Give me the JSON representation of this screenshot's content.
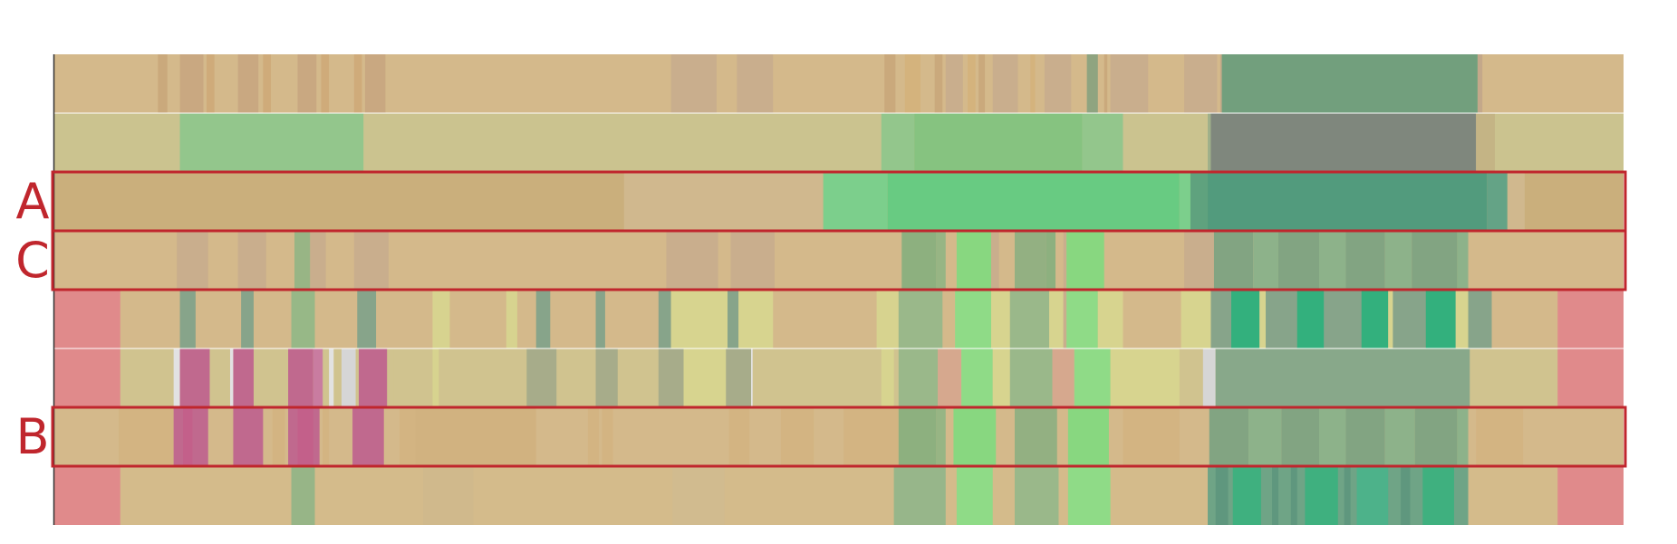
{
  "highlight_color": "#c0262d",
  "background_color": "#ffffff",
  "frame_color": "#333333",
  "row_labels": {
    "a": "A",
    "b": "B",
    "c": "C"
  },
  "highlighted_rows": [
    {
      "label_key": "a",
      "track_index": 2
    },
    {
      "label_key": "c",
      "track_index": 3
    },
    {
      "label_key": "b",
      "track_index": 6
    }
  ],
  "track_count": 8,
  "tracks": [
    {
      "name": "track-1",
      "base": "#d4b98b",
      "segments": [
        [
          0.066,
          0.072,
          "#caa97c"
        ],
        [
          0.08,
          0.095,
          "#c9a881"
        ],
        [
          0.097,
          0.102,
          "#cfab7a"
        ],
        [
          0.117,
          0.13,
          "#c9a881"
        ],
        [
          0.133,
          0.138,
          "#cfab7a"
        ],
        [
          0.155,
          0.167,
          "#c9a881"
        ],
        [
          0.17,
          0.175,
          "#cfab7a"
        ],
        [
          0.191,
          0.196,
          "#cfab7a"
        ],
        [
          0.198,
          0.211,
          "#c9a881"
        ],
        [
          0.393,
          0.422,
          "#c9ae8d"
        ],
        [
          0.435,
          0.458,
          "#c9ae8d"
        ],
        [
          0.529,
          0.536,
          "#caa97c"
        ],
        [
          0.542,
          0.552,
          "#d4b37d"
        ],
        [
          0.561,
          0.566,
          "#caa97c"
        ],
        [
          0.568,
          0.579,
          "#c9ae8d"
        ],
        [
          0.582,
          0.587,
          "#d4b37d"
        ],
        [
          0.589,
          0.593,
          "#caa97c"
        ],
        [
          0.598,
          0.614,
          "#c9ae8d"
        ],
        [
          0.622,
          0.625,
          "#d4b37d"
        ],
        [
          0.631,
          0.648,
          "#c9ae8d"
        ],
        [
          0.658,
          0.665,
          "#8fa480"
        ],
        [
          0.669,
          0.671,
          "#caa97c"
        ],
        [
          0.673,
          0.697,
          "#c9ae8d"
        ],
        [
          0.72,
          0.741,
          "#c9ae8d"
        ],
        [
          0.743,
          0.744,
          "#c4a88a"
        ],
        [
          0.744,
          0.907,
          "#729f7d"
        ],
        [
          0.907,
          0.91,
          "#c4a88a"
        ]
      ]
    },
    {
      "name": "track-2",
      "base": "#cbc38f",
      "segments": [
        [
          0.08,
          0.197,
          "#93c68c"
        ],
        [
          0.527,
          0.548,
          "#93c68c"
        ],
        [
          0.548,
          0.655,
          "#86c380"
        ],
        [
          0.655,
          0.681,
          "#93c68c"
        ],
        [
          0.735,
          0.737,
          "#9fb08a"
        ],
        [
          0.737,
          0.906,
          "#7f877d"
        ],
        [
          0.906,
          0.918,
          "#c4b485"
        ]
      ]
    },
    {
      "name": "track-3",
      "base": "#caaf7c",
      "segments": [
        [
          0.363,
          0.49,
          "#d0b88e"
        ],
        [
          0.49,
          0.531,
          "#7ccf8c"
        ],
        [
          0.531,
          0.717,
          "#68cb82"
        ],
        [
          0.717,
          0.724,
          "#7ccf8c"
        ],
        [
          0.724,
          0.735,
          "#5fa27e"
        ],
        [
          0.735,
          0.913,
          "#529b7d"
        ],
        [
          0.913,
          0.926,
          "#64a386"
        ],
        [
          0.926,
          0.937,
          "#d0b88e"
        ]
      ]
    },
    {
      "name": "track-4",
      "base": "#d4b98b",
      "segments": [
        [
          0.078,
          0.098,
          "#c9ae8d"
        ],
        [
          0.117,
          0.135,
          "#c9ae8d"
        ],
        [
          0.153,
          0.163,
          "#98b585"
        ],
        [
          0.163,
          0.173,
          "#c9ae8d"
        ],
        [
          0.191,
          0.213,
          "#c9ae8d"
        ],
        [
          0.39,
          0.423,
          "#c9ae8d"
        ],
        [
          0.431,
          0.459,
          "#c9ae8d"
        ],
        [
          0.54,
          0.562,
          "#8db07f"
        ],
        [
          0.562,
          0.568,
          "#97b584"
        ],
        [
          0.575,
          0.597,
          "#88d780"
        ],
        [
          0.597,
          0.602,
          "#c9ae8d"
        ],
        [
          0.612,
          0.61,
          "#c9ae8d"
        ],
        [
          0.612,
          0.632,
          "#93b082"
        ],
        [
          0.632,
          0.638,
          "#8db07f"
        ],
        [
          0.643,
          0.645,
          "#c9ae8d"
        ],
        [
          0.645,
          0.669,
          "#88d780"
        ],
        [
          0.72,
          0.739,
          "#c9ae8d"
        ],
        [
          0.739,
          0.764,
          "#82a482"
        ],
        [
          0.764,
          0.78,
          "#8db28a"
        ],
        [
          0.78,
          0.806,
          "#82a482"
        ],
        [
          0.806,
          0.823,
          "#8db28a"
        ],
        [
          0.823,
          0.848,
          "#82a482"
        ],
        [
          0.848,
          0.865,
          "#8db28a"
        ],
        [
          0.865,
          0.894,
          "#82a482"
        ],
        [
          0.894,
          0.901,
          "#8db28a"
        ]
      ]
    },
    {
      "name": "track-5",
      "base": "#d4b98b",
      "segments": [
        [
          0.0,
          0.042,
          "#e08a8b"
        ],
        [
          0.08,
          0.09,
          "#87a48a"
        ],
        [
          0.119,
          0.127,
          "#87a48a"
        ],
        [
          0.151,
          0.166,
          "#97b887"
        ],
        [
          0.193,
          0.205,
          "#87a48a"
        ],
        [
          0.241,
          0.252,
          "#d7d38f"
        ],
        [
          0.288,
          0.295,
          "#d7d38f"
        ],
        [
          0.307,
          0.316,
          "#87a48a"
        ],
        [
          0.345,
          0.351,
          "#87a48a"
        ],
        [
          0.385,
          0.393,
          "#87a48a"
        ],
        [
          0.393,
          0.429,
          "#d7d48f"
        ],
        [
          0.429,
          0.436,
          "#87a48a"
        ],
        [
          0.436,
          0.458,
          "#d7d48f"
        ],
        [
          0.524,
          0.538,
          "#d7d38f"
        ],
        [
          0.538,
          0.566,
          "#9ab88a"
        ],
        [
          0.574,
          0.597,
          "#8fdb87"
        ],
        [
          0.597,
          0.609,
          "#d7d48f"
        ],
        [
          0.609,
          0.634,
          "#9ab88a"
        ],
        [
          0.634,
          0.643,
          "#d7d48f"
        ],
        [
          0.643,
          0.645,
          "#c9ae8d"
        ],
        [
          0.645,
          0.665,
          "#8fdb87"
        ],
        [
          0.665,
          0.681,
          "#d7d48f"
        ],
        [
          0.718,
          0.737,
          "#d7d48f"
        ],
        [
          0.737,
          0.916,
          "#87a48a"
        ],
        [
          0.75,
          0.768,
          "#33b07d"
        ],
        [
          0.768,
          0.772,
          "#d7d48f"
        ],
        [
          0.772,
          0.788,
          "#87a48a"
        ],
        [
          0.792,
          0.809,
          "#33b07d"
        ],
        [
          0.833,
          0.85,
          "#33b07d"
        ],
        [
          0.85,
          0.853,
          "#d7d48f"
        ],
        [
          0.874,
          0.893,
          "#33b07d"
        ],
        [
          0.893,
          0.901,
          "#d7d48f"
        ],
        [
          0.958,
          1.0,
          "#e08a8b"
        ]
      ]
    },
    {
      "name": "track-6",
      "base": "#d0c38f",
      "segments": [
        [
          0.0,
          0.042,
          "#e08a8b"
        ],
        [
          0.076,
          0.08,
          "#e2e2e2"
        ],
        [
          0.08,
          0.099,
          "#c0698e"
        ],
        [
          0.112,
          0.114,
          "#e2e2e2"
        ],
        [
          0.114,
          0.127,
          "#c0698e"
        ],
        [
          0.149,
          0.165,
          "#c0698e"
        ],
        [
          0.165,
          0.171,
          "#c97ca0"
        ],
        [
          0.175,
          0.178,
          "#e2e2e2"
        ],
        [
          0.183,
          0.192,
          "#d6d6d6"
        ],
        [
          0.194,
          0.212,
          "#c0698e"
        ],
        [
          0.216,
          0.239,
          "#d0c38f"
        ],
        [
          0.241,
          0.245,
          "#d7d38f"
        ],
        [
          0.301,
          0.32,
          "#a7ac8a"
        ],
        [
          0.345,
          0.359,
          "#a7ac8a"
        ],
        [
          0.385,
          0.401,
          "#a7ac8a"
        ],
        [
          0.401,
          0.428,
          "#d7d48f"
        ],
        [
          0.428,
          0.444,
          "#a7ac8a"
        ],
        [
          0.444,
          0.445,
          "#e2e2e2"
        ],
        [
          0.527,
          0.535,
          "#d7d48f"
        ],
        [
          0.538,
          0.563,
          "#9ab88a"
        ],
        [
          0.563,
          0.578,
          "#d6a88e"
        ],
        [
          0.578,
          0.598,
          "#8fdb87"
        ],
        [
          0.598,
          0.609,
          "#d7d48f"
        ],
        [
          0.609,
          0.636,
          "#9ab88a"
        ],
        [
          0.636,
          0.65,
          "#d6a88e"
        ],
        [
          0.65,
          0.673,
          "#8fdb87"
        ],
        [
          0.673,
          0.717,
          "#d7d48f"
        ],
        [
          0.732,
          0.74,
          "#d6d6d6"
        ],
        [
          0.74,
          0.902,
          "#88a88a"
        ],
        [
          0.958,
          1.0,
          "#e08a8b"
        ]
      ]
    },
    {
      "name": "track-7",
      "base": "#d4b98b",
      "segments": [
        [
          0.041,
          0.076,
          "#d3b482"
        ],
        [
          0.076,
          0.098,
          "#c0698e"
        ],
        [
          0.082,
          0.088,
          "#c3608a"
        ],
        [
          0.114,
          0.133,
          "#c0698e"
        ],
        [
          0.139,
          0.147,
          "#d3b482"
        ],
        [
          0.149,
          0.169,
          "#c0698e"
        ],
        [
          0.155,
          0.165,
          "#c3608a"
        ],
        [
          0.171,
          0.175,
          "#d3b482"
        ],
        [
          0.19,
          0.21,
          "#c0698e"
        ],
        [
          0.22,
          0.23,
          "#d3b482"
        ],
        [
          0.23,
          0.307,
          "#d1b280"
        ],
        [
          0.34,
          0.347,
          "#d3b482"
        ],
        [
          0.349,
          0.356,
          "#d3b482"
        ],
        [
          0.43,
          0.443,
          "#d3b482"
        ],
        [
          0.463,
          0.484,
          "#d3b482"
        ],
        [
          0.503,
          0.538,
          "#d3b482"
        ],
        [
          0.538,
          0.562,
          "#8db07f"
        ],
        [
          0.562,
          0.568,
          "#97b584"
        ],
        [
          0.573,
          0.6,
          "#88d780"
        ],
        [
          0.612,
          0.639,
          "#93b082"
        ],
        [
          0.646,
          0.672,
          "#88d780"
        ],
        [
          0.681,
          0.717,
          "#d3b482"
        ],
        [
          0.736,
          0.761,
          "#82a482"
        ],
        [
          0.761,
          0.782,
          "#8db28a"
        ],
        [
          0.782,
          0.806,
          "#82a482"
        ],
        [
          0.806,
          0.823,
          "#8db28a"
        ],
        [
          0.823,
          0.848,
          "#82a482"
        ],
        [
          0.848,
          0.867,
          "#8db28a"
        ],
        [
          0.867,
          0.894,
          "#82a482"
        ],
        [
          0.894,
          0.901,
          "#8db28a"
        ],
        [
          0.906,
          0.936,
          "#d3b482"
        ]
      ]
    },
    {
      "name": "track-8",
      "base": "#d4bb8b",
      "segments": [
        [
          0.0,
          0.042,
          "#e08a8b"
        ],
        [
          0.151,
          0.166,
          "#97b587"
        ],
        [
          0.235,
          0.267,
          "#d0b98c"
        ],
        [
          0.394,
          0.427,
          "#d1bb8f"
        ],
        [
          0.535,
          0.568,
          "#97b68a"
        ],
        [
          0.575,
          0.598,
          "#8fdb87"
        ],
        [
          0.612,
          0.64,
          "#9ab88a"
        ],
        [
          0.646,
          0.673,
          "#8fdb87"
        ],
        [
          0.735,
          0.901,
          "#6fa486"
        ],
        [
          0.74,
          0.748,
          "#5f977e"
        ],
        [
          0.751,
          0.769,
          "#3fb07f"
        ],
        [
          0.776,
          0.78,
          "#5f977e"
        ],
        [
          0.788,
          0.792,
          "#5f977e"
        ],
        [
          0.797,
          0.818,
          "#3fb07f"
        ],
        [
          0.822,
          0.826,
          "#5f977e"
        ],
        [
          0.83,
          0.85,
          "#4db28a"
        ],
        [
          0.858,
          0.864,
          "#5f977e"
        ],
        [
          0.872,
          0.892,
          "#3fb07f"
        ],
        [
          0.958,
          1.0,
          "#e08a8b"
        ]
      ]
    }
  ]
}
